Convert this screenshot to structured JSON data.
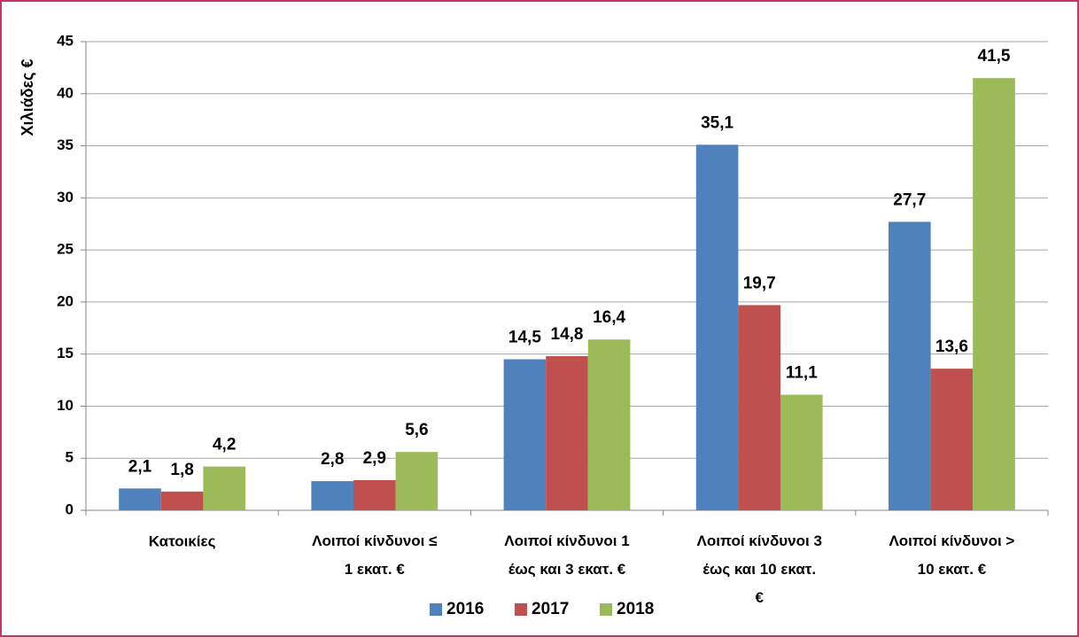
{
  "chart_data": {
    "type": "bar",
    "y_label": "Χιλιάδες €",
    "categories": [
      "Κατοικίες",
      "Λοιποί κίνδυνοι ≤ 1 εκατ. €",
      "Λοιποί κίνδυνοι 1 έως και 3 εκατ. €",
      "Λοιποί κίνδυνοι 3 έως και 10 εκατ. €",
      "Λοιποί κίνδυνοι > 10 εκατ. €"
    ],
    "series": [
      {
        "name": "2016",
        "color": "#4f81bd",
        "values": [
          2.1,
          2.8,
          14.5,
          35.1,
          27.7
        ],
        "value_labels": [
          "2,1",
          "2,8",
          "14,5",
          "35,1",
          "27,7"
        ]
      },
      {
        "name": "2017",
        "color": "#c0504d",
        "values": [
          1.8,
          2.9,
          14.8,
          19.7,
          13.6
        ],
        "value_labels": [
          "1,8",
          "2,9",
          "14,8",
          "19,7",
          "13,6"
        ]
      },
      {
        "name": "2018",
        "color": "#9bbb59",
        "values": [
          4.2,
          5.6,
          16.4,
          11.1,
          41.5
        ],
        "value_labels": [
          "4,2",
          "5,6",
          "16,4",
          "11,1",
          "41,5"
        ]
      }
    ],
    "ylim": [
      0,
      45
    ],
    "yticks": [
      0,
      5,
      10,
      15,
      20,
      25,
      30,
      35,
      40,
      45
    ],
    "grid": true,
    "legend": "bottom"
  }
}
